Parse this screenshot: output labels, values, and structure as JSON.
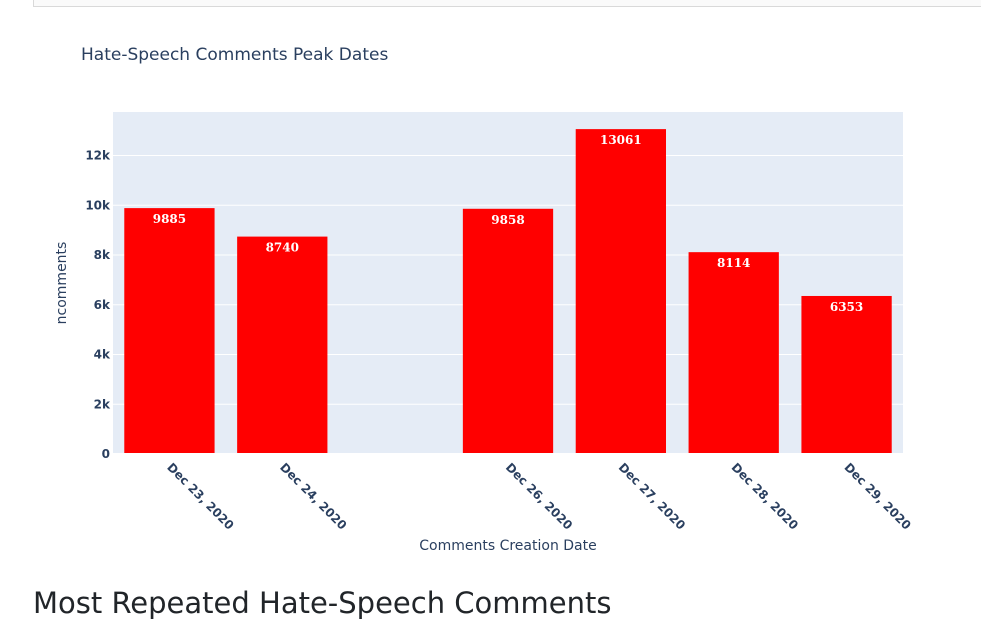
{
  "chart_data": {
    "type": "bar",
    "title": "Hate-Speech Comments Peak Dates",
    "xlabel": "Comments Creation Date",
    "ylabel": "ncomments",
    "categories": [
      "Dec 23, 2020",
      "Dec 24, 2020",
      "Dec 26, 2020",
      "Dec 27, 2020",
      "Dec 28, 2020",
      "Dec 29, 2020"
    ],
    "x": [
      "2020-12-23",
      "2020-12-24",
      "2020-12-26",
      "2020-12-27",
      "2020-12-28",
      "2020-12-29"
    ],
    "values": [
      9885,
      8740,
      9858,
      13061,
      8114,
      6353
    ],
    "data_labels": [
      "9885",
      "8740",
      "9858",
      "13061",
      "8114",
      "6353"
    ],
    "yticks": [
      0,
      2000,
      4000,
      6000,
      8000,
      10000,
      12000
    ],
    "ytick_labels": [
      "0",
      "2k",
      "4k",
      "6k",
      "8k",
      "10k",
      "12k"
    ],
    "ylim": [
      0,
      13749
    ],
    "xlim": [
      "2020-12-22T12:00",
      "2020-12-29T12:00"
    ],
    "bar_color": "#ff0000",
    "plot_bg": "#e5ecf6",
    "grid": true,
    "legend": false
  },
  "section_heading": "Most Repeated Hate-Speech Comments"
}
